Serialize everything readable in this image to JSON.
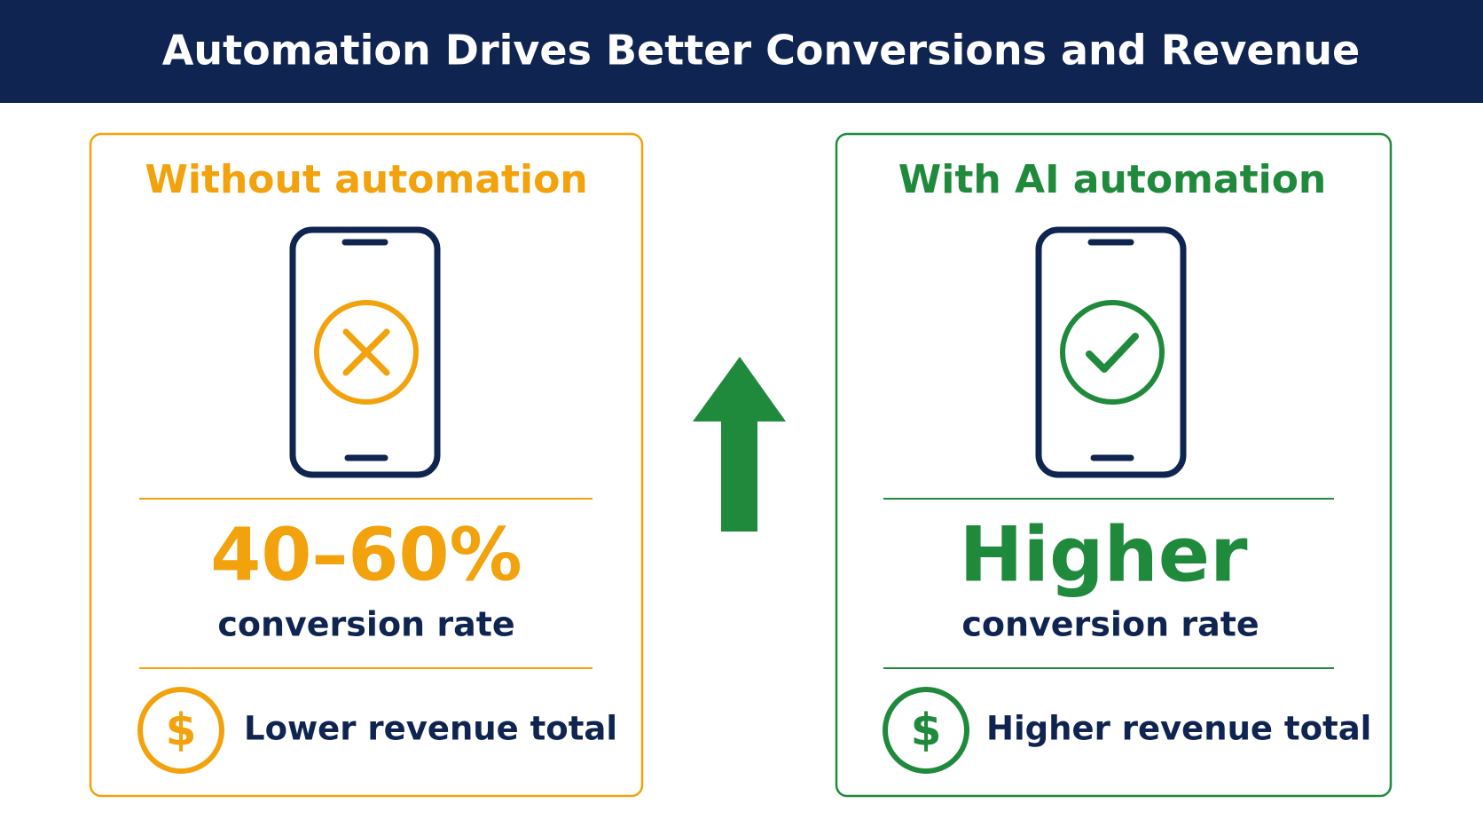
{
  "header": {
    "title": "Automation Drives Better Conversions and Revenue"
  },
  "panels": [
    {
      "heading": "Without automation",
      "stat": "40–60%",
      "stat_caption": "conversion rate",
      "revenue_icon": "$",
      "revenue": "Lower revenue total"
    },
    {
      "heading": "With AI automation",
      "stat": "Higher",
      "stat_caption": "conversion rate",
      "revenue_icon": "$",
      "revenue": "Higher revenue total"
    }
  ]
}
